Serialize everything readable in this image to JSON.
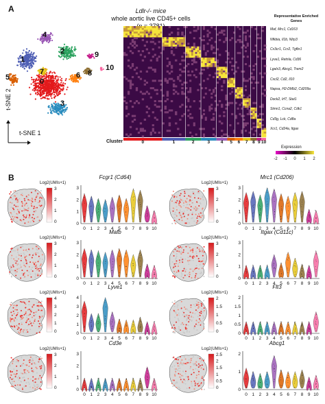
{
  "panelA": {
    "letter": "A",
    "title_line1": "Ldlr-/- mice",
    "title_line2": "whole aortic live CD45+ cells",
    "title_line3": "(n = 3781)",
    "tsne_x_label": "t-SNE 1",
    "tsne_y_label": "t-SNE 2",
    "cluster_numbers": [
      "0",
      "1",
      "2",
      "3",
      "4",
      "5",
      "6",
      "7",
      "8",
      "9",
      "10"
    ],
    "heatmap_cluster_label": "Cluster",
    "heatmap_cluster_ticks": [
      "0",
      "1",
      "2",
      "3",
      "4",
      "5",
      "6",
      "7",
      "8",
      "9",
      "10"
    ],
    "genes_header": "Representative Enriched Genes",
    "gene_rows": [
      "Maf, Mrc1, Cd163",
      "Nfkbia, Il1b, Nlrp3",
      "Cx3cr1, Ccr2, Tgfbr1",
      "Lyve1, Retnla, Cd36",
      "Lgals3, Abcg1, Trem2",
      "Cxcl2, Cd2, Il10",
      "Napsa, H2-DMb2, Cd209a",
      "Dock2, Irf7, Stat1",
      "Stmn1, Ccna2, Cdk1",
      "Cd3g, Lck, Cd8a",
      "Xcr1, Cd24a, Itgax"
    ],
    "expression_label": "Expression",
    "expression_ticks": [
      "-2",
      "-1",
      "0",
      "1",
      "2"
    ],
    "cluster_colors": [
      "#e31a1c",
      "#4f5fb5",
      "#2ca25f",
      "#2b8cbe",
      "#9b59b6",
      "#d95f02",
      "#ff7f0e",
      "#e6c619",
      "#8c6d31",
      "#c51b8a",
      "#f768a1"
    ]
  },
  "panelB": {
    "letter": "B",
    "legend_title": "Log2(UMIs+1)",
    "violin_x_ticks": [
      "0",
      "1",
      "2",
      "3",
      "4",
      "5",
      "6",
      "7",
      "8",
      "9",
      "10"
    ],
    "genes": [
      {
        "name": "Fcgr1 (Cd64)",
        "legend_ticks": [
          "3",
          "2",
          "1",
          "0"
        ],
        "y_ticks": [
          "3",
          "2",
          "1",
          "0"
        ],
        "medians": [
          1.6,
          1.4,
          1.2,
          1.1,
          1.3,
          1.5,
          1.2,
          2.0,
          1.9,
          0.6,
          0.2
        ]
      },
      {
        "name": "Mrc1 (Cd206)",
        "legend_ticks": [
          "3",
          "2",
          "1",
          "0"
        ],
        "y_ticks": [
          "3",
          "2",
          "1",
          "0"
        ],
        "medians": [
          1.7,
          1.8,
          1.5,
          2.1,
          2.0,
          1.6,
          1.4,
          1.7,
          1.8,
          0.3,
          0.2
        ]
      },
      {
        "name": "Mafb",
        "legend_ticks": [
          "3",
          "2",
          "1",
          "0"
        ],
        "y_ticks": [
          "3",
          "2",
          "1",
          "0"
        ],
        "medians": [
          1.6,
          1.5,
          1.4,
          1.3,
          1.5,
          1.6,
          1.5,
          1.1,
          1.5,
          0.3,
          0.2
        ]
      },
      {
        "name": "Itgax (Cd11c)",
        "legend_ticks": [
          "3",
          "2",
          "1",
          "0"
        ],
        "y_ticks": [
          "3",
          "2",
          "1",
          "0"
        ],
        "medians": [
          0.2,
          0.2,
          0.2,
          0.2,
          1.1,
          0.4,
          1.3,
          0.8,
          0.3,
          0.2,
          1.4
        ]
      },
      {
        "name": "Lyve1",
        "legend_ticks": [
          "4",
          "3",
          "2",
          "1",
          "0"
        ],
        "y_ticks": [
          "4",
          "3",
          "2",
          "1",
          "0"
        ],
        "medians": [
          2.4,
          1.0,
          1.0,
          2.8,
          1.2,
          0.4,
          0.3,
          0.3,
          0.6,
          0.1,
          0.1
        ]
      },
      {
        "name": "Flt3",
        "legend_ticks": [
          "2",
          "1.5",
          "1",
          "0.5",
          "0"
        ],
        "y_ticks": [
          "2",
          "1.5",
          "1",
          "0.5",
          "0"
        ],
        "medians": [
          0.05,
          0.05,
          0.05,
          0.05,
          0.05,
          0.05,
          0.05,
          0.05,
          0.05,
          0.05,
          0.6
        ]
      },
      {
        "name": "Cd3e",
        "legend_ticks": [
          "3",
          "2",
          "1",
          "0"
        ],
        "y_ticks": [
          "3",
          "2",
          "1",
          "0"
        ],
        "medians": [
          0.05,
          0.05,
          0.05,
          0.05,
          0.05,
          0.05,
          0.05,
          0.05,
          0.05,
          1.0,
          0.05
        ]
      },
      {
        "name": "Abcg1",
        "legend_ticks": [
          "2.5",
          "2",
          "1.5",
          "1",
          "0.5",
          "0"
        ],
        "y_ticks": [
          "2",
          "1",
          "0"
        ],
        "medians": [
          0.6,
          0.4,
          0.3,
          0.4,
          1.3,
          0.5,
          0.4,
          0.4,
          0.5,
          0.1,
          0.2
        ]
      }
    ]
  }
}
